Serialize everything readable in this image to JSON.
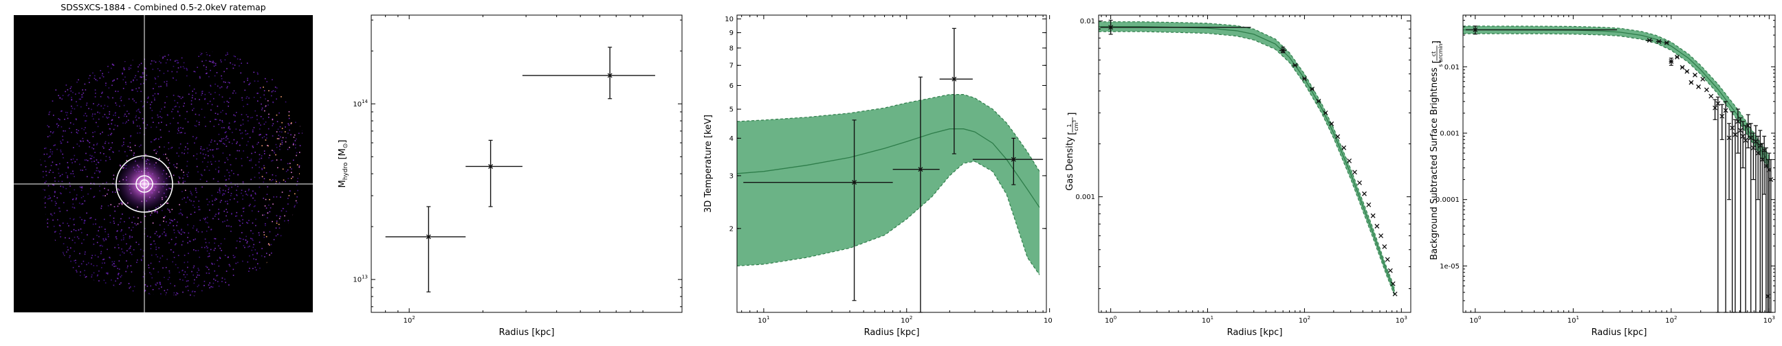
{
  "image_panel": {
    "title": "SDSSXCS-1884 - Combined 0.5-2.0keV ratemap"
  },
  "chart_data": [
    {
      "type": "scatter",
      "name": "mhydro",
      "xlabel": "Radius [kpc]",
      "ylabel": "M",
      "ylabel_sub": "hydro",
      "ylabel_unit": " [M",
      "ylabel_unit_sub": "⊙",
      "ylabel_unit_close": "]",
      "xscale": "log",
      "yscale": "log",
      "xlim": [
        70,
        1300
      ],
      "ylim": [
        6500000000000.0,
        320000000000000.0
      ],
      "xticks": [
        {
          "v": 100,
          "m": "10",
          "e": "2"
        }
      ],
      "yticks": [
        {
          "v": 10000000000000.0,
          "m": "10",
          "e": "13"
        },
        {
          "v": 100000000000000.0,
          "m": "10",
          "e": "14"
        }
      ],
      "points": [
        {
          "x": 120,
          "xlo": 80,
          "xhi": 170,
          "y": 17500000000000.0,
          "ylo": 8500000000000.0,
          "yhi": 26000000000000.0
        },
        {
          "x": 215,
          "xlo": 170,
          "xhi": 290,
          "y": 44000000000000.0,
          "ylo": 26000000000000.0,
          "yhi": 62000000000000.0
        },
        {
          "x": 660,
          "xlo": 290,
          "xhi": 1010,
          "y": 145000000000000.0,
          "ylo": 107000000000000.0,
          "yhi": 210000000000000.0
        }
      ]
    },
    {
      "type": "line",
      "name": "temperature",
      "xlabel": "Radius [kpc]",
      "ylabel": "3D Temperature [keV]",
      "xscale": "log",
      "yscale": "log",
      "xlim": [
        6.5,
        950
      ],
      "ylim": [
        1.05,
        10.3
      ],
      "xticks": [
        {
          "v": 10,
          "m": "10",
          "e": "1"
        },
        {
          "v": 100,
          "m": "10",
          "e": "2"
        },
        {
          "v": 1000,
          "m": "10",
          "e": "3"
        }
      ],
      "yticks": [
        {
          "v": 2,
          "t": "2"
        },
        {
          "v": 3,
          "t": "3"
        },
        {
          "v": 4,
          "t": "4"
        },
        {
          "v": 5,
          "t": "5"
        },
        {
          "v": 6,
          "t": "6"
        },
        {
          "v": 7,
          "t": "7"
        },
        {
          "v": 8,
          "t": "8"
        },
        {
          "v": 9,
          "t": "9"
        },
        {
          "v": 10,
          "t": "10"
        }
      ],
      "model": {
        "x": [
          6.5,
          10,
          20,
          40,
          70,
          100,
          150,
          200,
          250,
          300,
          400,
          500,
          600,
          700,
          850
        ],
        "median": [
          3.05,
          3.1,
          3.25,
          3.45,
          3.7,
          3.9,
          4.15,
          4.3,
          4.3,
          4.2,
          3.85,
          3.4,
          3.0,
          2.7,
          2.35
        ],
        "upper": [
          4.55,
          4.6,
          4.7,
          4.85,
          5.05,
          5.25,
          5.45,
          5.6,
          5.6,
          5.45,
          5.0,
          4.5,
          4.0,
          3.6,
          3.1
        ],
        "lower": [
          1.5,
          1.52,
          1.6,
          1.72,
          1.9,
          2.15,
          2.55,
          3.0,
          3.3,
          3.35,
          3.1,
          2.6,
          2.0,
          1.6,
          1.4
        ]
      },
      "points": [
        {
          "x": 43,
          "xlo": 7.2,
          "xhi": 80,
          "y": 2.85,
          "ylo": 1.15,
          "yhi": 4.6
        },
        {
          "x": 125,
          "xlo": 80,
          "xhi": 170,
          "y": 3.15,
          "ylo": 1.0,
          "yhi": 6.4
        },
        {
          "x": 215,
          "xlo": 170,
          "xhi": 290,
          "y": 6.3,
          "ylo": 3.55,
          "yhi": 9.3
        },
        {
          "x": 560,
          "xlo": 290,
          "xhi": 900,
          "y": 3.4,
          "ylo": 2.8,
          "yhi": 4.0
        }
      ]
    },
    {
      "type": "line",
      "name": "density",
      "xlabel": "Radius [kpc]",
      "ylabel": "Gas Density",
      "ylabel_unit_num": "1",
      "ylabel_unit_den": "cm",
      "ylabel_unit_den_exp": "3",
      "xscale": "log",
      "yscale": "log",
      "xlim": [
        0.75,
        1250
      ],
      "ylim": [
        0.00022,
        0.0108
      ],
      "xticks": [
        {
          "v": 1,
          "m": "10",
          "e": "0"
        },
        {
          "v": 10,
          "m": "10",
          "e": "1"
        },
        {
          "v": 100,
          "m": "10",
          "e": "2"
        },
        {
          "v": 1000,
          "m": "10",
          "e": "3"
        }
      ],
      "yticks": [
        {
          "v": 0.001,
          "t": "0.001"
        },
        {
          "v": 0.01,
          "t": "0.01"
        }
      ],
      "model": {
        "x": [
          0.75,
          1,
          2,
          5,
          10,
          20,
          30,
          50,
          70,
          100,
          150,
          200,
          300,
          500,
          700,
          850
        ],
        "median": [
          0.0093,
          0.0093,
          0.0093,
          0.0092,
          0.0091,
          0.0088,
          0.0084,
          0.0074,
          0.0062,
          0.0047,
          0.0032,
          0.0023,
          0.00135,
          0.00064,
          0.00038,
          0.00029
        ],
        "upper": [
          0.0099,
          0.0099,
          0.0099,
          0.0098,
          0.0097,
          0.0094,
          0.009,
          0.0079,
          0.0066,
          0.005,
          0.0034,
          0.00245,
          0.00144,
          0.00068,
          0.0004,
          0.000305
        ],
        "lower": [
          0.0087,
          0.0087,
          0.0087,
          0.0086,
          0.0085,
          0.0082,
          0.0078,
          0.0069,
          0.0058,
          0.0044,
          0.003,
          0.00215,
          0.00126,
          0.0006,
          0.00036,
          0.000275
        ]
      },
      "points": [
        {
          "x": 1,
          "xlo": 0.78,
          "xhi": 28,
          "y": 0.0092,
          "ylo": 0.0084,
          "yhi": 0.0101
        },
        {
          "x": 60,
          "xlo": 55,
          "xhi": 65,
          "y": 0.0068,
          "ylo": 0.0066,
          "yhi": 0.0071
        },
        {
          "x": 80,
          "xlo": 75,
          "xhi": 85,
          "y": 0.0056
        },
        {
          "x": 100,
          "xlo": 95,
          "xhi": 105,
          "y": 0.0047
        },
        {
          "x": 120,
          "xlo": 115,
          "xhi": 125,
          "y": 0.0041
        },
        {
          "x": 140,
          "xlo": 135,
          "xhi": 145,
          "y": 0.0035
        },
        {
          "x": 165,
          "xlo": 160,
          "xhi": 170,
          "y": 0.003
        },
        {
          "x": 190,
          "xlo": 185,
          "xhi": 195,
          "y": 0.0026
        },
        {
          "x": 220,
          "xlo": 215,
          "xhi": 225,
          "y": 0.0022
        },
        {
          "x": 255,
          "xlo": 250,
          "xhi": 260,
          "y": 0.0019
        },
        {
          "x": 290,
          "xlo": 285,
          "xhi": 295,
          "y": 0.0016
        },
        {
          "x": 330,
          "xlo": 325,
          "xhi": 335,
          "y": 0.00138
        },
        {
          "x": 370,
          "xlo": 365,
          "xhi": 375,
          "y": 0.0012
        },
        {
          "x": 415,
          "xlo": 410,
          "xhi": 420,
          "y": 0.00104
        },
        {
          "x": 460,
          "xlo": 455,
          "xhi": 465,
          "y": 0.0009
        },
        {
          "x": 510,
          "xlo": 505,
          "xhi": 515,
          "y": 0.00078
        },
        {
          "x": 560,
          "xlo": 555,
          "xhi": 565,
          "y": 0.00068
        },
        {
          "x": 615,
          "xlo": 610,
          "xhi": 620,
          "y": 0.0006
        },
        {
          "x": 670,
          "xlo": 665,
          "xhi": 675,
          "y": 0.00052
        },
        {
          "x": 720,
          "xlo": 715,
          "xhi": 725,
          "y": 0.00044
        },
        {
          "x": 770,
          "xlo": 765,
          "xhi": 775,
          "y": 0.00038
        },
        {
          "x": 820,
          "xlo": 815,
          "xhi": 825,
          "y": 0.00032
        },
        {
          "x": 860,
          "xlo": 855,
          "xhi": 865,
          "y": 0.00028
        }
      ]
    },
    {
      "type": "line",
      "name": "surface-brightness",
      "xlabel": "Radius [kpc]",
      "ylabel": "Background Subtracted Surface Brightness",
      "ylabel_unit_num": "ct",
      "ylabel_unit_den": "s arcmin",
      "ylabel_unit_den_exp": "2",
      "xscale": "log",
      "yscale": "log",
      "xlim": [
        0.75,
        1150
      ],
      "ylim": [
        2e-06,
        0.06
      ],
      "xticks": [
        {
          "v": 1,
          "m": "10",
          "e": "0"
        },
        {
          "v": 10,
          "m": "10",
          "e": "1"
        },
        {
          "v": 100,
          "m": "10",
          "e": "2"
        },
        {
          "v": 1000,
          "m": "10",
          "e": "3"
        }
      ],
      "yticks": [
        {
          "v": 1e-05,
          "t": "1e-05"
        },
        {
          "v": 0.0001,
          "t": "0.0001"
        },
        {
          "v": 0.001,
          "t": "0.001"
        },
        {
          "v": 0.01,
          "t": "0.01"
        }
      ],
      "model": {
        "x": [
          0.75,
          1,
          5,
          10,
          20,
          30,
          50,
          70,
          100,
          150,
          200,
          300,
          500,
          700,
          900,
          1000
        ],
        "median": [
          0.036,
          0.036,
          0.0358,
          0.0355,
          0.0345,
          0.0332,
          0.0297,
          0.026,
          0.0205,
          0.0135,
          0.009,
          0.0046,
          0.0017,
          0.0008,
          0.00045,
          0.00036
        ],
        "upper": [
          0.041,
          0.041,
          0.0408,
          0.0405,
          0.0394,
          0.038,
          0.034,
          0.0298,
          0.0236,
          0.0156,
          0.0105,
          0.0055,
          0.0021,
          0.001,
          0.00058,
          0.00046
        ],
        "lower": [
          0.0315,
          0.0315,
          0.0313,
          0.031,
          0.0301,
          0.029,
          0.0259,
          0.0226,
          0.0177,
          0.0116,
          0.0077,
          0.0039,
          0.00142,
          0.00066,
          0.00036,
          0.00029
        ]
      },
      "points": [
        {
          "x": 1,
          "xlo": 0.8,
          "xhi": 28,
          "y": 0.036,
          "ylo": 0.031,
          "yhi": 0.041
        },
        {
          "x": 60,
          "xlo": 55,
          "xhi": 65,
          "y": 0.025
        },
        {
          "x": 75,
          "xlo": 70,
          "xhi": 80,
          "y": 0.024
        },
        {
          "x": 90,
          "xlo": 85,
          "xhi": 95,
          "y": 0.023
        },
        {
          "x": 100,
          "xlo": 95,
          "xhi": 105,
          "y": 0.012,
          "ylo": 0.0105,
          "yhi": 0.0135
        },
        {
          "x": 115,
          "xlo": 110,
          "xhi": 120,
          "y": 0.014
        },
        {
          "x": 130,
          "xlo": 125,
          "xhi": 135,
          "y": 0.0098
        },
        {
          "x": 145,
          "xlo": 140,
          "xhi": 150,
          "y": 0.0085
        },
        {
          "x": 160,
          "xlo": 155,
          "xhi": 165,
          "y": 0.0058
        },
        {
          "x": 175,
          "xlo": 170,
          "xhi": 180,
          "y": 0.0075
        },
        {
          "x": 190,
          "xlo": 185,
          "xhi": 195,
          "y": 0.005
        },
        {
          "x": 210,
          "xlo": 205,
          "xhi": 215,
          "y": 0.0065
        },
        {
          "x": 230,
          "xlo": 225,
          "xhi": 235,
          "y": 0.0045
        },
        {
          "x": 255,
          "xlo": 250,
          "xhi": 260,
          "y": 0.0036
        },
        {
          "x": 280,
          "xlo": 275,
          "xhi": 285,
          "y": 0.0024,
          "ylo": 0.0016,
          "yhi": 0.0032
        },
        {
          "x": 300,
          "xlo": 295,
          "xhi": 305,
          "y": 0.0028,
          "ylo": 2e-06,
          "yhi": 0.0035
        },
        {
          "x": 330,
          "xlo": 325,
          "xhi": 335,
          "y": 0.0018,
          "ylo": 0.0008,
          "yhi": 0.0027
        },
        {
          "x": 360,
          "xlo": 355,
          "xhi": 365,
          "y": 0.0022,
          "ylo": 2e-06,
          "yhi": 0.003
        },
        {
          "x": 390,
          "xlo": 385,
          "xhi": 395,
          "y": 0.00085,
          "ylo": 0.0001,
          "yhi": 0.0014
        },
        {
          "x": 420,
          "xlo": 415,
          "xhi": 425,
          "y": 0.0012,
          "ylo": 2e-06,
          "yhi": 0.0021
        },
        {
          "x": 450,
          "xlo": 445,
          "xhi": 455,
          "y": 0.00095,
          "ylo": 2e-06,
          "yhi": 0.0016
        },
        {
          "x": 480,
          "xlo": 475,
          "xhi": 485,
          "y": 0.0015,
          "ylo": 0.0005,
          "yhi": 0.0023
        },
        {
          "x": 510,
          "xlo": 505,
          "xhi": 515,
          "y": 0.0011,
          "ylo": 2e-06,
          "yhi": 0.0017
        },
        {
          "x": 540,
          "xlo": 535,
          "xhi": 545,
          "y": 0.0009,
          "ylo": 0.0003,
          "yhi": 0.0015
        },
        {
          "x": 575,
          "xlo": 570,
          "xhi": 580,
          "y": 0.00078,
          "ylo": 2e-06,
          "yhi": 0.0013
        },
        {
          "x": 610,
          "xlo": 605,
          "xhi": 615,
          "y": 0.0013,
          "ylo": 0.0006,
          "yhi": 0.0019
        },
        {
          "x": 650,
          "xlo": 645,
          "xhi": 655,
          "y": 0.00085,
          "ylo": 2e-06,
          "yhi": 0.0014
        },
        {
          "x": 690,
          "xlo": 685,
          "xhi": 695,
          "y": 0.0006,
          "ylo": 0.0002,
          "yhi": 0.001
        },
        {
          "x": 730,
          "xlo": 725,
          "xhi": 735,
          "y": 0.00075,
          "ylo": 2e-06,
          "yhi": 0.0013
        },
        {
          "x": 770,
          "xlo": 765,
          "xhi": 775,
          "y": 0.0005,
          "ylo": 0.0001,
          "yhi": 0.0009
        },
        {
          "x": 810,
          "xlo": 805,
          "xhi": 815,
          "y": 0.00065,
          "ylo": 2e-06,
          "yhi": 0.0011
        },
        {
          "x": 850,
          "xlo": 845,
          "xhi": 855,
          "y": 0.0004,
          "ylo": 2e-06,
          "yhi": 0.0007
        },
        {
          "x": 890,
          "xlo": 885,
          "xhi": 895,
          "y": 0.00055,
          "ylo": 0.00012,
          "yhi": 0.0009
        },
        {
          "x": 930,
          "xlo": 925,
          "xhi": 935,
          "y": 0.00032,
          "ylo": 2e-06,
          "yhi": 0.0006
        },
        {
          "x": 970,
          "xlo": 965,
          "xhi": 975,
          "y": 3.5e-06,
          "ylo": 2e-06,
          "yhi": 0.0004
        },
        {
          "x": 1000,
          "xlo": 995,
          "xhi": 1005,
          "y": 0.00028,
          "ylo": 2e-06,
          "yhi": 0.0005
        },
        {
          "x": 1040,
          "xlo": 1035,
          "xhi": 1045,
          "y": 0.0002,
          "ylo": 2e-06,
          "yhi": 0.0004
        }
      ]
    }
  ],
  "style": {
    "band_fill": "#3a9a5e",
    "band_edge": "#2e7d4a",
    "median_line": "#2e7d4a",
    "point_color": "#111111",
    "image_bg": "#000000",
    "crosshair": "#ffffff"
  }
}
